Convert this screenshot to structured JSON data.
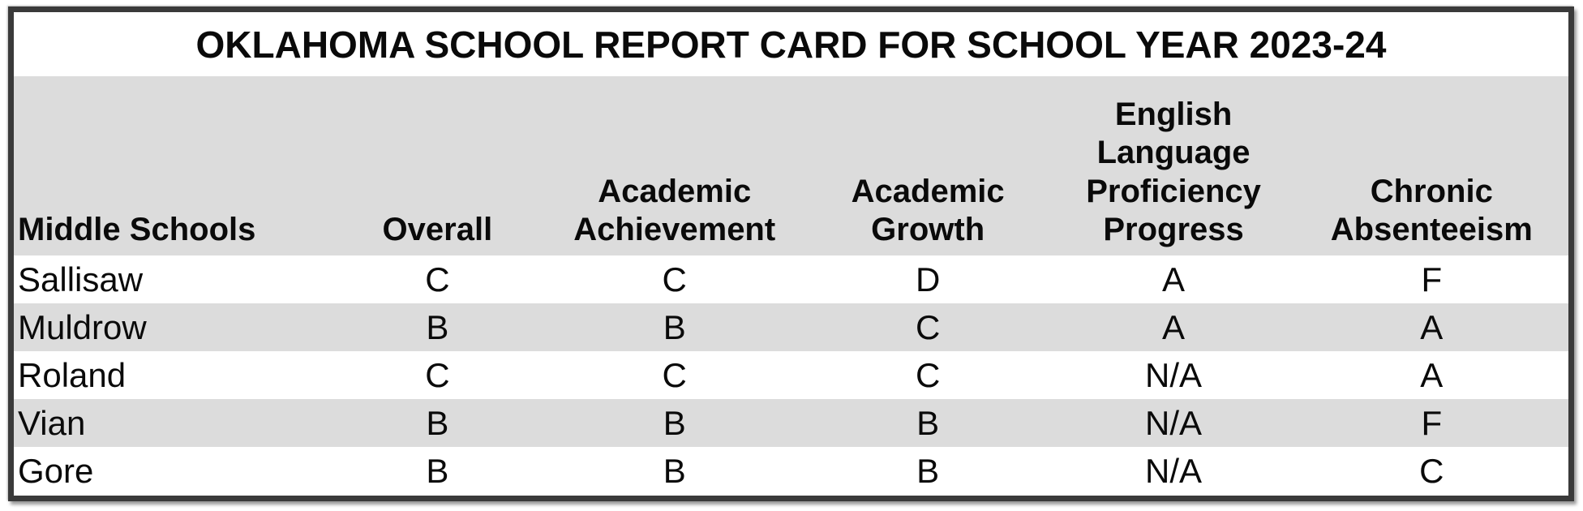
{
  "title": "OKLAHOMA SCHOOL REPORT CARD FOR SCHOOL YEAR 2023-24",
  "table": {
    "columns": [
      {
        "label": "Middle Schools"
      },
      {
        "label": "Overall"
      },
      {
        "label": "Academic Achievement"
      },
      {
        "label": "Academic Growth"
      },
      {
        "label": "English Language Proficiency Progress"
      },
      {
        "label": "Chronic Absenteeism"
      }
    ],
    "rows": [
      {
        "school": "Sallisaw",
        "grades": [
          "C",
          "C",
          "D",
          "A",
          "F"
        ]
      },
      {
        "school": "Muldrow",
        "grades": [
          "B",
          "B",
          "C",
          "A",
          "A"
        ]
      },
      {
        "school": "Roland",
        "grades": [
          "C",
          "C",
          "C",
          "N/A",
          "A"
        ]
      },
      {
        "school": "Vian",
        "grades": [
          "B",
          "B",
          "B",
          "N/A",
          "F"
        ]
      },
      {
        "school": "Gore",
        "grades": [
          "B",
          "B",
          "B",
          "N/A",
          "C"
        ]
      }
    ]
  },
  "colors": {
    "header_bg": "#dcdcdc",
    "stripe_bg": "#dcdcdc",
    "border": "#3a3a3a",
    "text": "#0a0a0a",
    "background": "#ffffff"
  },
  "chart_data": {
    "type": "table",
    "title": "OKLAHOMA SCHOOL REPORT CARD FOR SCHOOL YEAR 2023-24",
    "columns": [
      "Middle Schools",
      "Overall",
      "Academic Achievement",
      "Academic Growth",
      "English Language Proficiency Progress",
      "Chronic Absenteeism"
    ],
    "rows": [
      [
        "Sallisaw",
        "C",
        "C",
        "D",
        "A",
        "F"
      ],
      [
        "Muldrow",
        "B",
        "B",
        "C",
        "A",
        "A"
      ],
      [
        "Roland",
        "C",
        "C",
        "C",
        "N/A",
        "A"
      ],
      [
        "Vian",
        "B",
        "B",
        "B",
        "N/A",
        "F"
      ],
      [
        "Gore",
        "B",
        "B",
        "B",
        "N/A",
        "C"
      ]
    ]
  }
}
